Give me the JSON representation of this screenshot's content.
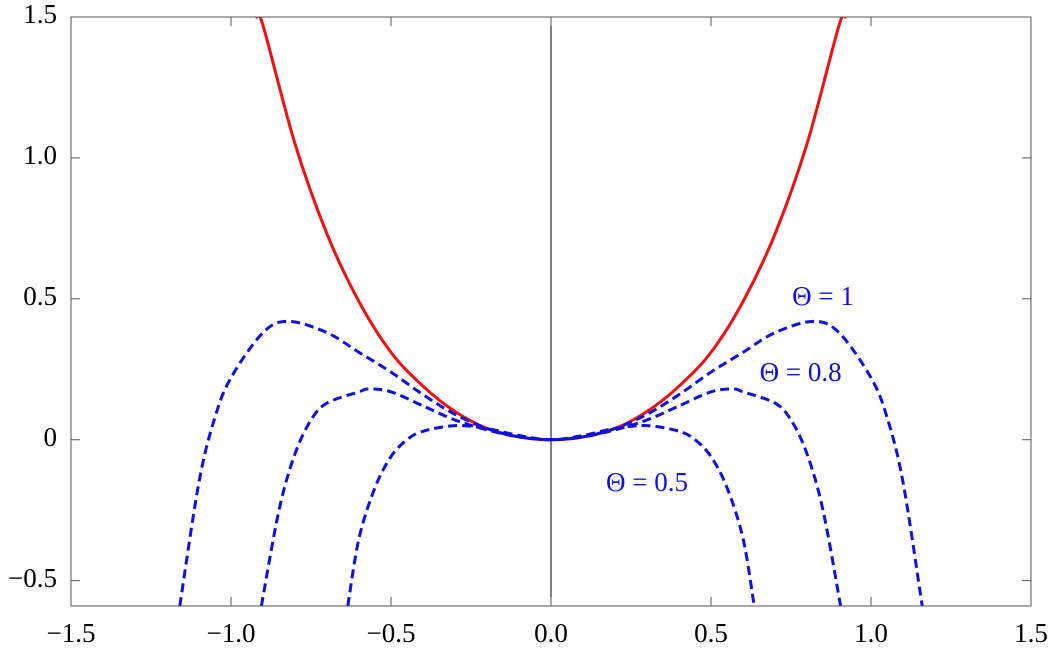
{
  "chart_data": {
    "type": "line",
    "xlim": [
      -1.5,
      1.5
    ],
    "ylim": [
      -0.59,
      1.5
    ],
    "xticks": [
      {
        "value": -1.5,
        "label": "−1.5"
      },
      {
        "value": -1,
        "label": "−1.0"
      },
      {
        "value": -0.5,
        "label": "−0.5"
      },
      {
        "value": 0,
        "label": "0.0"
      },
      0.5,
      {
        "value": 1,
        "label": "1.0"
      },
      1.5
    ],
    "yticks": [
      {
        "value": -0.5,
        "label": "−0.5"
      },
      0,
      0.5,
      {
        "value": 1,
        "label": "1.0"
      },
      1.5
    ],
    "series": [
      {
        "color": "#ee1111",
        "dash": false,
        "x": [
          -0.92,
          -0.9,
          -0.8,
          -0.7,
          -0.6,
          -0.5,
          -0.4,
          -0.3,
          -0.2,
          -0.1,
          0,
          0.1,
          0.2,
          0.3,
          0.4,
          0.5,
          0.6,
          0.7,
          0.8,
          0.9,
          0.92
        ],
        "values": [
          1.5,
          1.47,
          1.05,
          0.73,
          0.49,
          0.31,
          0.19,
          0.1,
          0.04,
          0.01,
          0,
          0.01,
          0.04,
          0.1,
          0.19,
          0.31,
          0.49,
          0.73,
          1.05,
          1.47,
          1.5
        ]
      },
      {
        "name": "Θ = 1",
        "color": "#1111dd",
        "dash": true,
        "x": [
          -1.16,
          -1.1,
          -1.05,
          -1,
          -0.9,
          -0.82,
          -0.7,
          -0.6,
          -0.5,
          -0.4,
          -0.3,
          -0.2,
          -0.1,
          0,
          0.1,
          0.2,
          0.3,
          0.4,
          0.5,
          0.6,
          0.7,
          0.82,
          0.9,
          1,
          1.05,
          1.1,
          1.16
        ],
        "values": [
          -0.59,
          -0.15,
          0.08,
          0.22,
          0.38,
          0.42,
          0.38,
          0.31,
          0.24,
          0.16,
          0.09,
          0.04,
          0.01,
          0,
          0.01,
          0.04,
          0.09,
          0.16,
          0.24,
          0.31,
          0.38,
          0.42,
          0.38,
          0.22,
          0.08,
          -0.15,
          -0.59
        ]
      },
      {
        "name": "Θ = 0.8",
        "color": "#1111dd",
        "dash": true,
        "x": [
          -0.905,
          -0.85,
          -0.8,
          -0.75,
          -0.7,
          -0.6,
          -0.57,
          -0.5,
          -0.4,
          -0.3,
          -0.2,
          -0.1,
          0,
          0.1,
          0.2,
          0.3,
          0.4,
          0.5,
          0.57,
          0.6,
          0.7,
          0.75,
          0.8,
          0.85,
          0.905
        ],
        "values": [
          -0.59,
          -0.25,
          -0.05,
          0.07,
          0.13,
          0.17,
          0.18,
          0.17,
          0.12,
          0.07,
          0.035,
          0.01,
          0,
          0.01,
          0.035,
          0.07,
          0.12,
          0.17,
          0.18,
          0.17,
          0.13,
          0.07,
          -0.05,
          -0.25,
          -0.59
        ]
      },
      {
        "name": "Θ = 0.5",
        "color": "#1111dd",
        "dash": true,
        "x": [
          -0.635,
          -0.6,
          -0.55,
          -0.5,
          -0.45,
          -0.4,
          -0.3,
          -0.2,
          -0.1,
          0,
          0.1,
          0.2,
          0.3,
          0.4,
          0.45,
          0.5,
          0.55,
          0.6,
          0.635
        ],
        "values": [
          -0.59,
          -0.35,
          -0.17,
          -0.06,
          0,
          0.03,
          0.05,
          0.04,
          0.015,
          0,
          0.015,
          0.04,
          0.05,
          0.03,
          0,
          -0.06,
          -0.17,
          -0.35,
          -0.59
        ]
      }
    ]
  }
}
